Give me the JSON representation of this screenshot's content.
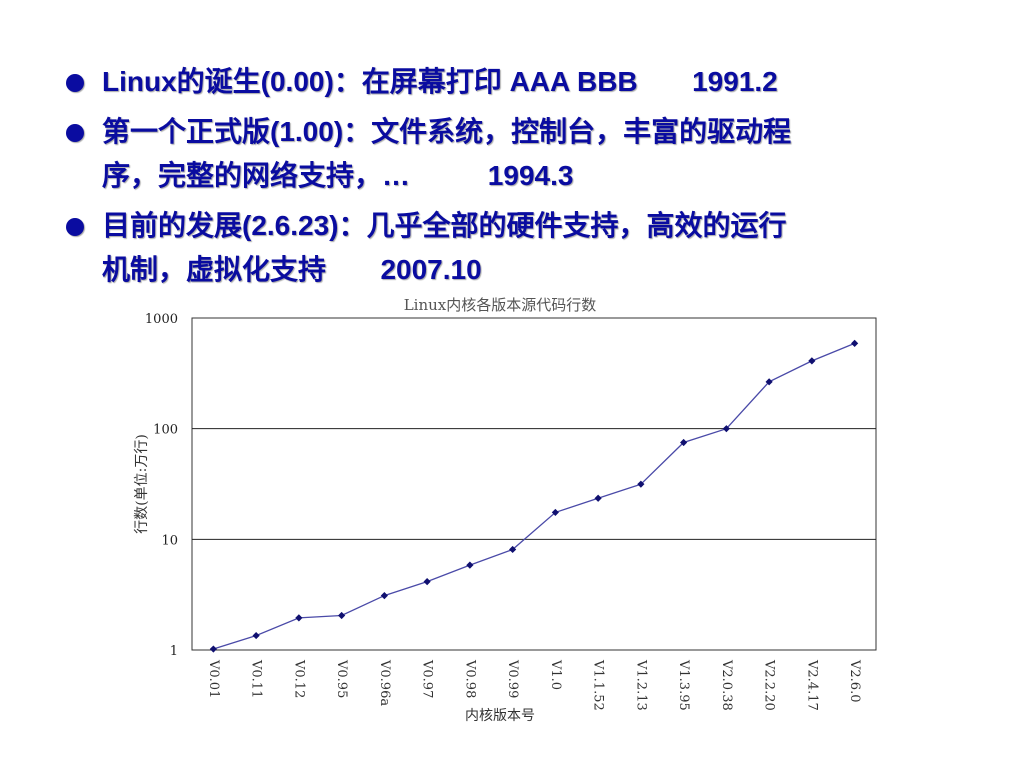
{
  "slide": {
    "bullets": [
      {
        "lines": [
          "Linux的诞生(0.00)：在屏幕打印 AAA BBB       1991.2"
        ]
      },
      {
        "lines": [
          "第一个正式版(1.00)：文件系统，控制台，丰富的驱动程",
          "序，完整的网络支持，…          1994.3"
        ]
      },
      {
        "lines": [
          "目前的发展(2.6.23)：几乎全部的硬件支持，高效的运行",
          "机制，虚拟化支持       2007.10"
        ]
      }
    ]
  },
  "chart_data": {
    "type": "line",
    "title": "Linux内核各版本源代码行数",
    "xlabel": "内核版本号",
    "ylabel": "行数(单位:万行)",
    "yscale": "log",
    "ylim": [
      1,
      1000
    ],
    "yticks": [
      "1",
      "10",
      "100",
      "1000"
    ],
    "grid": "horizontal at 10 and 100",
    "categories": [
      "V0.01",
      "V0.11",
      "V0.12",
      "V0.95",
      "V0.96a",
      "V0.97",
      "V0.98",
      "V0.99",
      "V1.0",
      "V1.1.52",
      "V1.2.13",
      "V1.3.95",
      "V2.0.38",
      "V2.2.20",
      "V2.4.17",
      "V2.6.0"
    ],
    "values": [
      1.02,
      1.35,
      1.95,
      2.05,
      3.1,
      4.15,
      5.85,
      8.1,
      17.5,
      23.5,
      31.5,
      75,
      100,
      265,
      410,
      590
    ],
    "line_color": "#4a4aa8",
    "marker_color": "#101070"
  }
}
